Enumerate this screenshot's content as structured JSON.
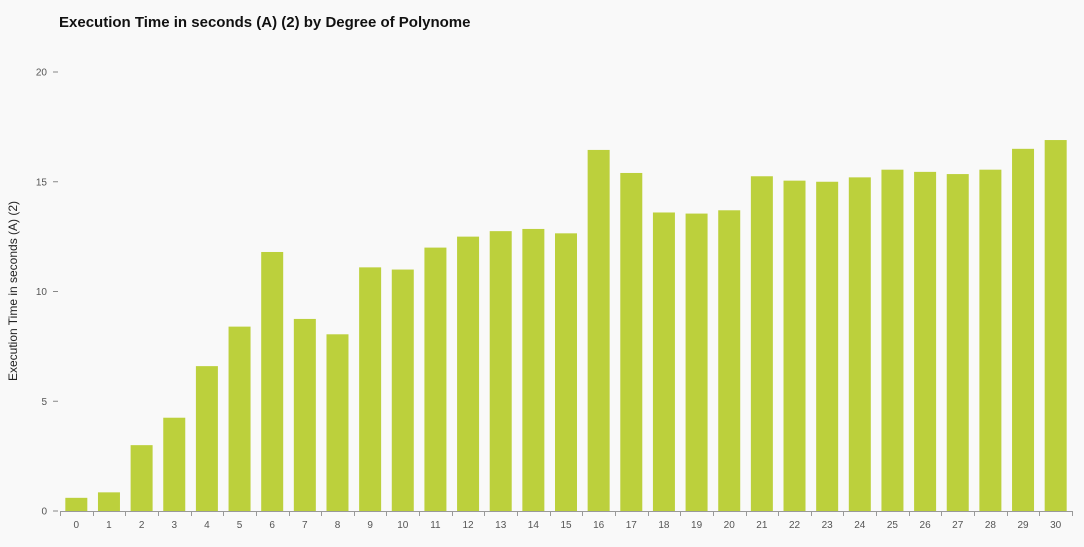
{
  "chart_data": {
    "type": "bar",
    "title": "Execution Time in seconds (A) (2) by Degree of Polynome",
    "xlabel": "",
    "ylabel": "Execution Time in seconds (A) (2)",
    "ylim": [
      0,
      20
    ],
    "yticks": [
      0,
      5,
      10,
      15,
      20
    ],
    "categories": [
      "0",
      "1",
      "2",
      "3",
      "4",
      "5",
      "6",
      "7",
      "8",
      "9",
      "10",
      "11",
      "12",
      "13",
      "14",
      "15",
      "16",
      "17",
      "18",
      "19",
      "20",
      "21",
      "22",
      "23",
      "24",
      "25",
      "26",
      "27",
      "28",
      "29",
      "30"
    ],
    "values": [
      0.6,
      0.85,
      3.0,
      4.25,
      6.6,
      8.4,
      11.8,
      8.75,
      8.05,
      11.1,
      11.0,
      12.0,
      12.5,
      12.75,
      12.85,
      12.65,
      16.45,
      15.4,
      13.6,
      13.55,
      13.7,
      15.25,
      15.05,
      15.0,
      15.2,
      15.55,
      15.45,
      15.35,
      15.55,
      16.5,
      16.9
    ],
    "bar_color": "#bcd03c",
    "grid": false,
    "legend": "none"
  }
}
